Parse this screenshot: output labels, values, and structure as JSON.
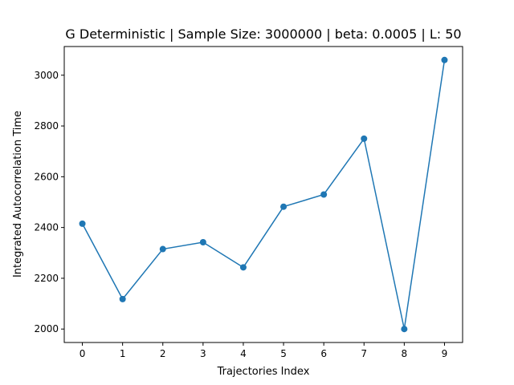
{
  "chart_data": {
    "type": "line",
    "title": "G Deterministic | Sample Size: 3000000 | beta: 0.0005 | L: 50",
    "xlabel": "Trajectories Index",
    "ylabel": "Integrated Autocorrelation Time",
    "x": [
      0,
      1,
      2,
      3,
      4,
      5,
      6,
      7,
      8,
      9
    ],
    "series": [
      {
        "values": [
          2415,
          2118,
          2315,
          2342,
          2243,
          2482,
          2530,
          2750,
          2000,
          3060
        ],
        "color": "#1f77b4",
        "marker": "circle"
      }
    ],
    "xlim": [
      -0.45,
      9.45
    ],
    "ylim": [
      1947,
      3113
    ],
    "xticks": [
      "0",
      "1",
      "2",
      "3",
      "4",
      "5",
      "6",
      "7",
      "8",
      "9"
    ],
    "yticks": [
      "2000",
      "2200",
      "2400",
      "2600",
      "2800",
      "3000"
    ],
    "grid": false,
    "legend": "none"
  }
}
